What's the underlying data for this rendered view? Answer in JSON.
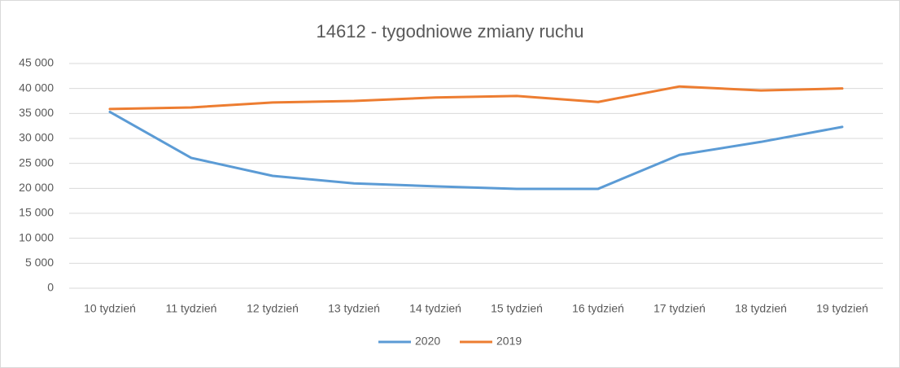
{
  "chart_data": {
    "type": "line",
    "title": "14612 - tygodniowe zmiany ruchu",
    "categories": [
      "10 tydzień",
      "11 tydzień",
      "12 tydzień",
      "13 tydzień",
      "14 tydzień",
      "15 tydzień",
      "16 tydzień",
      "17 tydzień",
      "18 tydzień",
      "19 tydzień"
    ],
    "series": [
      {
        "name": "2020",
        "color": "#5b9bd5",
        "values": [
          35300,
          26100,
          22500,
          21000,
          20400,
          19900,
          19900,
          26700,
          29300,
          32300
        ]
      },
      {
        "name": "2019",
        "color": "#ed7d31",
        "values": [
          35900,
          36200,
          37200,
          37500,
          38200,
          38500,
          37300,
          40400,
          39600,
          40000
        ]
      }
    ],
    "ylim": [
      0,
      45000
    ],
    "yticks": [
      0,
      {
        "value": 5000,
        "label": "5 000"
      },
      {
        "value": 10000,
        "label": "10 000"
      },
      {
        "value": 15000,
        "label": "15 000"
      },
      {
        "value": 20000,
        "label": "20 000"
      },
      {
        "value": 25000,
        "label": "25 000"
      },
      {
        "value": 30000,
        "label": "30 000"
      },
      {
        "value": 35000,
        "label": "35 000"
      },
      {
        "value": 40000,
        "label": "40 000"
      },
      {
        "value": 45000,
        "label": "45 000"
      }
    ],
    "grid": true,
    "legend": "bottom"
  }
}
